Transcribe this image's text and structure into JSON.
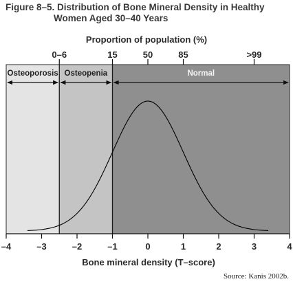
{
  "figure": {
    "title_line1": "Figure 8–5. Distribution of Bone Mineral Density in Healthy",
    "title_line2": "Women Aged 30–40 Years",
    "source": "Source: Kanis 2002b."
  },
  "chart_data": {
    "type": "area",
    "xlabel": "Bone mineral density (T–score)",
    "top_axis_label": "Proportion of population (%)",
    "xlim": [
      -4,
      4
    ],
    "x_ticks": [
      -4,
      -3,
      -2,
      -1,
      0,
      1,
      2,
      3,
      4
    ],
    "x_tick_labels": [
      "–4",
      "–3",
      "–2",
      "–1",
      "0",
      "1",
      "2",
      "3",
      "4"
    ],
    "top_ticks": [
      {
        "label": "0–6",
        "x": -2.5
      },
      {
        "label": "15",
        "x": -1
      },
      {
        "label": "50",
        "x": 0
      },
      {
        "label": "85",
        "x": 1
      },
      {
        "label": ">99",
        "x": 3
      }
    ],
    "regions": [
      {
        "name": "Osteoporosis",
        "from": -4,
        "to": -2.5,
        "color": "#e4e4e4"
      },
      {
        "name": "Osteopenia",
        "from": -2.5,
        "to": -1,
        "color": "#c4c4c4"
      },
      {
        "name": "Normal",
        "from": -1,
        "to": 4,
        "color": "#8f8f8f"
      }
    ],
    "curve": {
      "distribution": "normal",
      "mean": 0,
      "sd": 1,
      "x_range": [
        -3.4,
        3.4
      ]
    },
    "grid": false
  }
}
